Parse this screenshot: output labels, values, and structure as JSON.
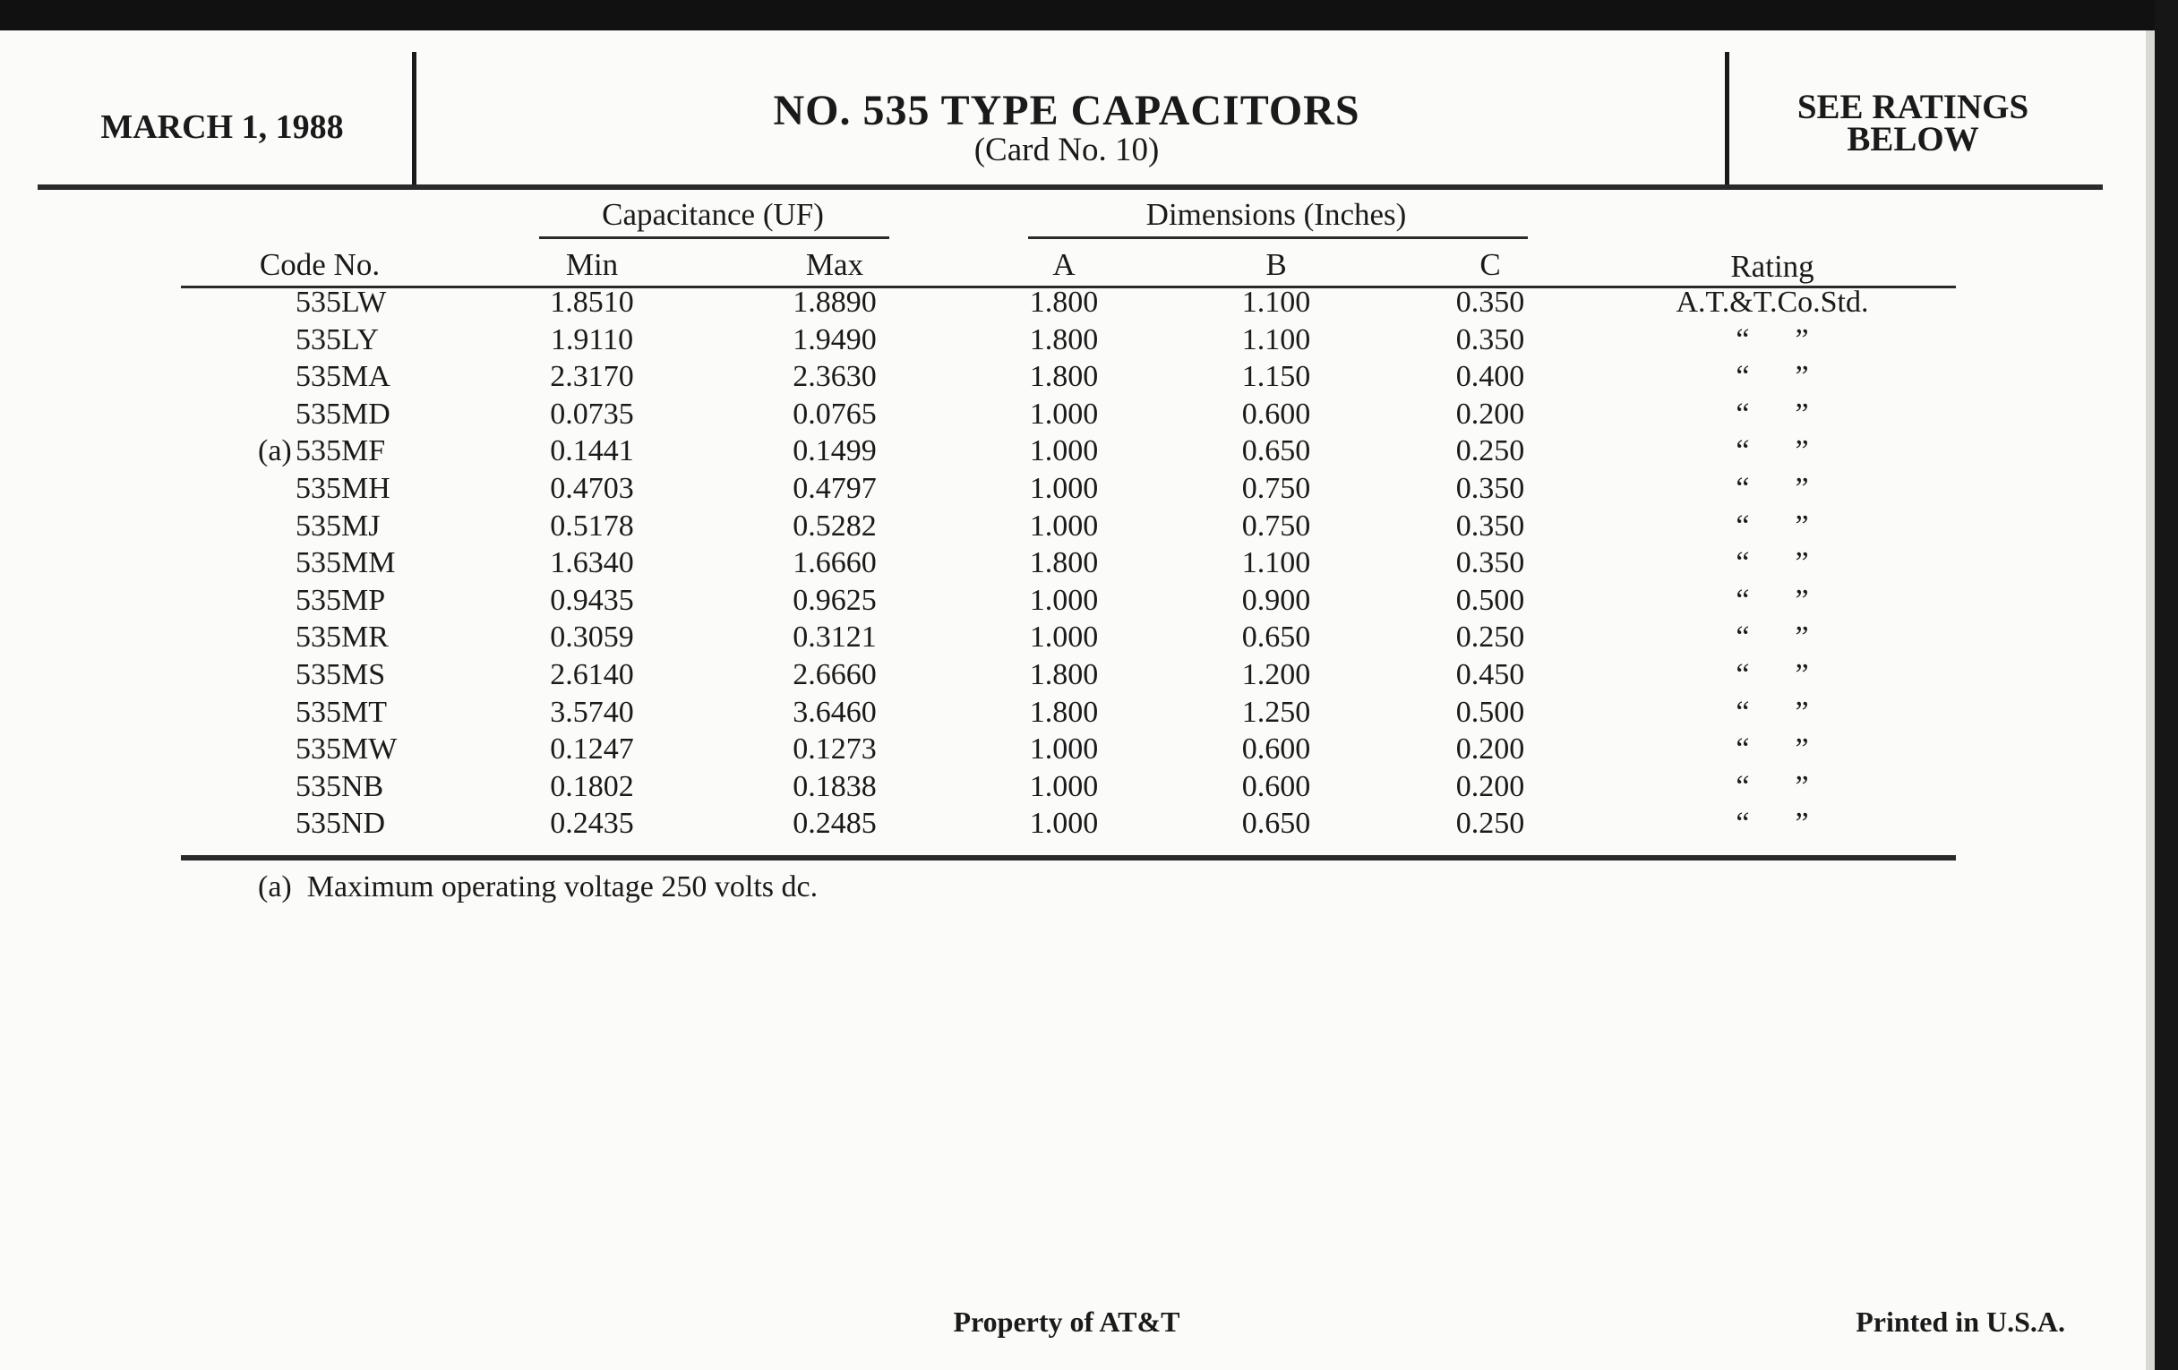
{
  "header": {
    "date": "MARCH 1, 1988",
    "title": "NO. 535 TYPE CAPACITORS",
    "subtitle": "(Card No. 10)",
    "ratings_note_line1": "SEE RATINGS",
    "ratings_note_line2": "BELOW"
  },
  "table": {
    "group_headers": {
      "capacitance": "Capacitance (UF)",
      "dimensions": "Dimensions (Inches)"
    },
    "columns": [
      "Code No.",
      "Min",
      "Max",
      "A",
      "B",
      "C",
      "Rating"
    ],
    "rows": [
      {
        "prefix": "",
        "code": "535LW",
        "min": "1.8510",
        "max": "1.8890",
        "a": "1.800",
        "b": "1.100",
        "c": "0.350",
        "rating": "A.T.&T.Co.Std."
      },
      {
        "prefix": "",
        "code": "535LY",
        "min": "1.9110",
        "max": "1.9490",
        "a": "1.800",
        "b": "1.100",
        "c": "0.350",
        "rating": "“      ”"
      },
      {
        "prefix": "",
        "code": "535MA",
        "min": "2.3170",
        "max": "2.3630",
        "a": "1.800",
        "b": "1.150",
        "c": "0.400",
        "rating": "“      ”"
      },
      {
        "prefix": "",
        "code": "535MD",
        "min": "0.0735",
        "max": "0.0765",
        "a": "1.000",
        "b": "0.600",
        "c": "0.200",
        "rating": "“      ”"
      },
      {
        "prefix": "(a)",
        "code": "535MF",
        "min": "0.1441",
        "max": "0.1499",
        "a": "1.000",
        "b": "0.650",
        "c": "0.250",
        "rating": "“      ”"
      },
      {
        "prefix": "",
        "code": "535MH",
        "min": "0.4703",
        "max": "0.4797",
        "a": "1.000",
        "b": "0.750",
        "c": "0.350",
        "rating": "“      ”"
      },
      {
        "prefix": "",
        "code": "535MJ",
        "min": "0.5178",
        "max": "0.5282",
        "a": "1.000",
        "b": "0.750",
        "c": "0.350",
        "rating": "“      ”"
      },
      {
        "prefix": "",
        "code": "535MM",
        "min": "1.6340",
        "max": "1.6660",
        "a": "1.800",
        "b": "1.100",
        "c": "0.350",
        "rating": "“      ”"
      },
      {
        "prefix": "",
        "code": "535MP",
        "min": "0.9435",
        "max": "0.9625",
        "a": "1.000",
        "b": "0.900",
        "c": "0.500",
        "rating": "“      ”"
      },
      {
        "prefix": "",
        "code": "535MR",
        "min": "0.3059",
        "max": "0.3121",
        "a": "1.000",
        "b": "0.650",
        "c": "0.250",
        "rating": "“      ”"
      },
      {
        "prefix": "",
        "code": "535MS",
        "min": "2.6140",
        "max": "2.6660",
        "a": "1.800",
        "b": "1.200",
        "c": "0.450",
        "rating": "“      ”"
      },
      {
        "prefix": "",
        "code": "535MT",
        "min": "3.5740",
        "max": "3.6460",
        "a": "1.800",
        "b": "1.250",
        "c": "0.500",
        "rating": "“      ”"
      },
      {
        "prefix": "",
        "code": "535MW",
        "min": "0.1247",
        "max": "0.1273",
        "a": "1.000",
        "b": "0.600",
        "c": "0.200",
        "rating": "“      ”"
      },
      {
        "prefix": "",
        "code": "535NB",
        "min": "0.1802",
        "max": "0.1838",
        "a": "1.000",
        "b": "0.600",
        "c": "0.200",
        "rating": "“      ”"
      },
      {
        "prefix": "",
        "code": "535ND",
        "min": "0.2435",
        "max": "0.2485",
        "a": "1.000",
        "b": "0.650",
        "c": "0.250",
        "rating": "“      ”"
      }
    ]
  },
  "footnote": "(a)  Maximum operating voltage 250 volts dc.",
  "footer": {
    "property": "Property of AT&T",
    "printed": "Printed in U.S.A."
  }
}
